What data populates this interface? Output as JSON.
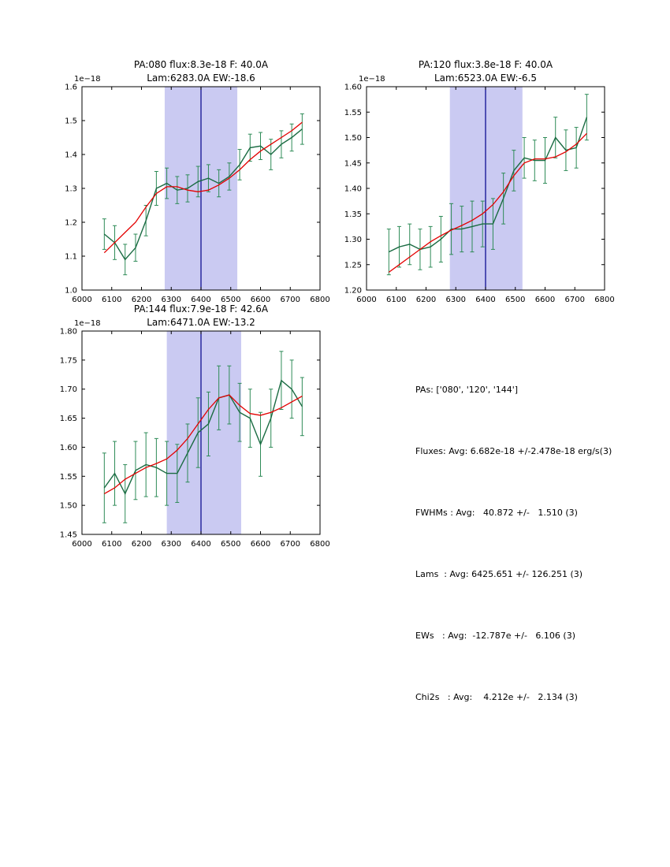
{
  "colors": {
    "data_line": "#1a6b42",
    "error_bar": "#2e8b57",
    "fit_line": "#e30000",
    "band_fill": "#9e9ee8",
    "band_opacity": 0.55,
    "center_line": "#00008b",
    "axes": "#000000"
  },
  "stats": {
    "lines": [
      "PAs: ['080', '120', '144']",
      "Fluxes: Avg: 6.682e-18 +/-2.478e-18 erg/s(3)",
      "FWHMs : Avg:   40.872 +/-   1.510 (3)",
      "Lams  : Avg: 6425.651 +/- 126.251 (3)",
      "EWs   : Avg:  -12.787e +/-   6.106 (3)",
      "Chi2s   : Avg:    4.212e +/-   2.134 (3)"
    ]
  },
  "chart_data": [
    {
      "type": "line",
      "title_line1": "PA:080 flux:8.3e-18 F: 40.0A",
      "title_line2": "Lam:6283.0A EW:-18.6",
      "offset_label": "1e−18",
      "xlim": [
        6000,
        6800
      ],
      "ylim": [
        1.0,
        1.6
      ],
      "xticks": [
        6000,
        6100,
        6200,
        6300,
        6400,
        6500,
        6600,
        6700,
        6800
      ],
      "xtick_labels": [
        "6000",
        "6100",
        "6200",
        "6300",
        "6400",
        "6500",
        "6600",
        "6700",
        "6800"
      ],
      "yticks": [
        1.0,
        1.1,
        1.2,
        1.3,
        1.4,
        1.5,
        1.6
      ],
      "ytick_labels": [
        "1.0",
        "1.1",
        "1.2",
        "1.3",
        "1.4",
        "1.5",
        "1.6"
      ],
      "band": [
        6278,
        6522
      ],
      "vline": 6400,
      "x": [
        6075,
        6110,
        6145,
        6180,
        6215,
        6250,
        6285,
        6320,
        6355,
        6390,
        6425,
        6460,
        6495,
        6530,
        6565,
        6600,
        6635,
        6670,
        6705,
        6740
      ],
      "series": [
        {
          "name": "spectrum-data",
          "values": [
            1.165,
            1.14,
            1.09,
            1.125,
            1.205,
            1.3,
            1.315,
            1.295,
            1.3,
            1.32,
            1.33,
            1.315,
            1.335,
            1.37,
            1.42,
            1.425,
            1.4,
            1.43,
            1.45,
            1.475
          ],
          "yerr": [
            0.045,
            0.05,
            0.045,
            0.04,
            0.045,
            0.05,
            0.045,
            0.04,
            0.04,
            0.045,
            0.04,
            0.04,
            0.04,
            0.045,
            0.04,
            0.04,
            0.045,
            0.04,
            0.04,
            0.045
          ]
        },
        {
          "name": "model-fit",
          "values": [
            1.11,
            1.14,
            1.17,
            1.2,
            1.245,
            1.285,
            1.305,
            1.305,
            1.295,
            1.29,
            1.295,
            1.31,
            1.33,
            1.355,
            1.385,
            1.41,
            1.43,
            1.45,
            1.47,
            1.495
          ]
        }
      ]
    },
    {
      "type": "line",
      "title_line1": "PA:120 flux:3.8e-18 F: 40.0A",
      "title_line2": "Lam:6523.0A EW:-6.5",
      "offset_label": "1e−18",
      "xlim": [
        6000,
        6800
      ],
      "ylim": [
        1.2,
        1.6
      ],
      "xticks": [
        6000,
        6100,
        6200,
        6300,
        6400,
        6500,
        6600,
        6700,
        6800
      ],
      "xtick_labels": [
        "6000",
        "6100",
        "6200",
        "6300",
        "6400",
        "6500",
        "6600",
        "6700",
        "6800"
      ],
      "yticks": [
        1.2,
        1.25,
        1.3,
        1.35,
        1.4,
        1.45,
        1.5,
        1.55,
        1.6
      ],
      "ytick_labels": [
        "1.20",
        "1.25",
        "1.30",
        "1.35",
        "1.40",
        "1.45",
        "1.50",
        "1.55",
        "1.60"
      ],
      "band": [
        6280,
        6524
      ],
      "vline": 6400,
      "x": [
        6075,
        6110,
        6145,
        6180,
        6215,
        6250,
        6285,
        6320,
        6355,
        6390,
        6425,
        6460,
        6495,
        6530,
        6565,
        6600,
        6635,
        6670,
        6705,
        6740
      ],
      "series": [
        {
          "name": "spectrum-data",
          "values": [
            1.275,
            1.285,
            1.29,
            1.28,
            1.285,
            1.3,
            1.32,
            1.32,
            1.325,
            1.33,
            1.33,
            1.38,
            1.435,
            1.46,
            1.455,
            1.455,
            1.5,
            1.475,
            1.48,
            1.54
          ],
          "yerr": [
            0.045,
            0.04,
            0.04,
            0.04,
            0.04,
            0.045,
            0.05,
            0.045,
            0.05,
            0.045,
            0.05,
            0.05,
            0.04,
            0.04,
            0.04,
            0.045,
            0.04,
            0.04,
            0.04,
            0.045
          ]
        },
        {
          "name": "model-fit",
          "values": [
            1.235,
            1.25,
            1.265,
            1.28,
            1.295,
            1.307,
            1.318,
            1.327,
            1.337,
            1.35,
            1.368,
            1.393,
            1.425,
            1.45,
            1.458,
            1.458,
            1.462,
            1.472,
            1.487,
            1.508
          ]
        }
      ]
    },
    {
      "type": "line",
      "title_line1": "PA:144 flux:7.9e-18 F: 42.6A",
      "title_line2": "Lam:6471.0A EW:-13.2",
      "offset_label": "1e−18",
      "xlim": [
        6000,
        6800
      ],
      "ylim": [
        1.45,
        1.8
      ],
      "xticks": [
        6000,
        6100,
        6200,
        6300,
        6400,
        6500,
        6600,
        6700,
        6800
      ],
      "xtick_labels": [
        "6000",
        "6100",
        "6200",
        "6300",
        "6400",
        "6500",
        "6600",
        "6700",
        "6800"
      ],
      "yticks": [
        1.45,
        1.5,
        1.55,
        1.6,
        1.65,
        1.7,
        1.75,
        1.8
      ],
      "ytick_labels": [
        "1.45",
        "1.50",
        "1.55",
        "1.60",
        "1.65",
        "1.70",
        "1.75",
        "1.80"
      ],
      "band": [
        6285,
        6535
      ],
      "vline": 6400,
      "x": [
        6075,
        6110,
        6145,
        6180,
        6215,
        6250,
        6285,
        6320,
        6355,
        6390,
        6425,
        6460,
        6495,
        6530,
        6565,
        6600,
        6635,
        6670,
        6705,
        6740
      ],
      "series": [
        {
          "name": "spectrum-data",
          "values": [
            1.53,
            1.555,
            1.52,
            1.56,
            1.57,
            1.565,
            1.555,
            1.555,
            1.59,
            1.625,
            1.64,
            1.685,
            1.69,
            1.66,
            1.65,
            1.605,
            1.65,
            1.715,
            1.7,
            1.67
          ],
          "yerr": [
            0.06,
            0.055,
            0.05,
            0.05,
            0.055,
            0.05,
            0.055,
            0.05,
            0.05,
            0.06,
            0.055,
            0.055,
            0.05,
            0.05,
            0.05,
            0.055,
            0.05,
            0.05,
            0.05,
            0.05
          ]
        },
        {
          "name": "model-fit",
          "values": [
            1.52,
            1.53,
            1.545,
            1.555,
            1.565,
            1.572,
            1.58,
            1.595,
            1.615,
            1.64,
            1.665,
            1.685,
            1.69,
            1.672,
            1.658,
            1.655,
            1.66,
            1.668,
            1.678,
            1.688
          ]
        }
      ]
    }
  ]
}
